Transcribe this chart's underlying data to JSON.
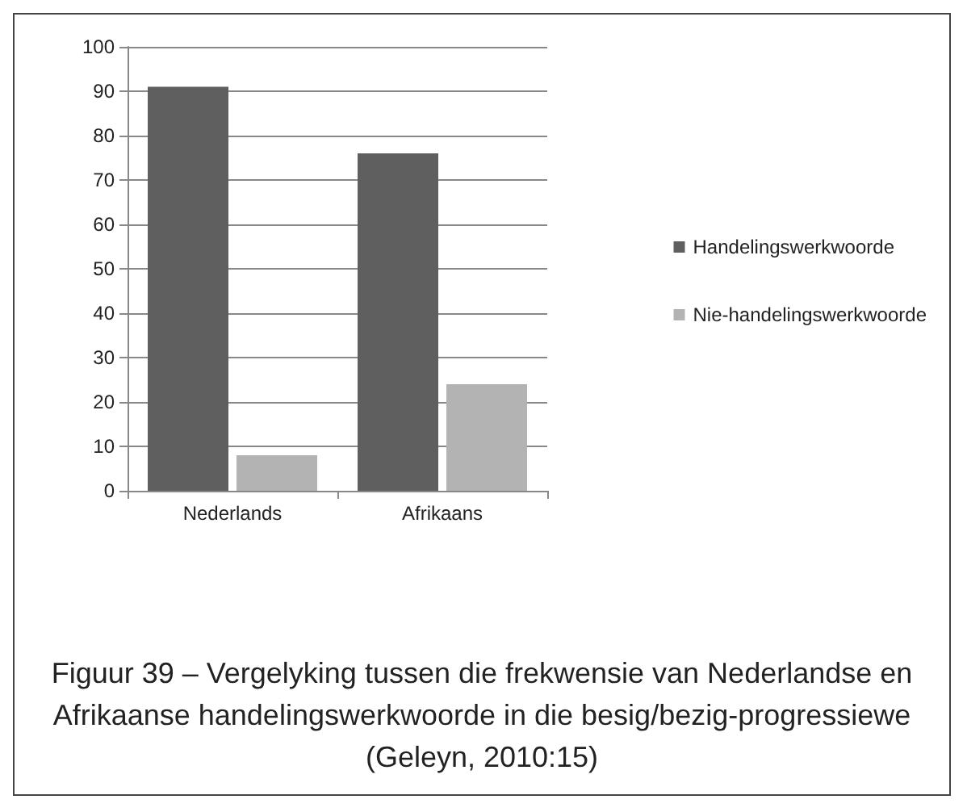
{
  "chart_data": {
    "type": "bar",
    "title": "Figuur 39 – Vergelyking tussen die frekwensie van Nederlandse en Afrikaanse handelingswerkwoorde in die besig/bezig-progressiewe (Geleyn, 2010:15)",
    "categories": [
      "Nederlands",
      "Afrikaans"
    ],
    "series": [
      {
        "name": "Handelingswerkwoorde",
        "color": "#5f5f5f",
        "values": [
          91,
          76
        ]
      },
      {
        "name": "Nie-handelingswerkwoorde",
        "color": "#b3b3b3",
        "values": [
          8,
          24
        ]
      }
    ],
    "ylim": [
      0,
      100
    ],
    "yticks": [
      0,
      10,
      20,
      30,
      40,
      50,
      60,
      70,
      80,
      90,
      100
    ],
    "grid": "y",
    "legend": "right"
  }
}
